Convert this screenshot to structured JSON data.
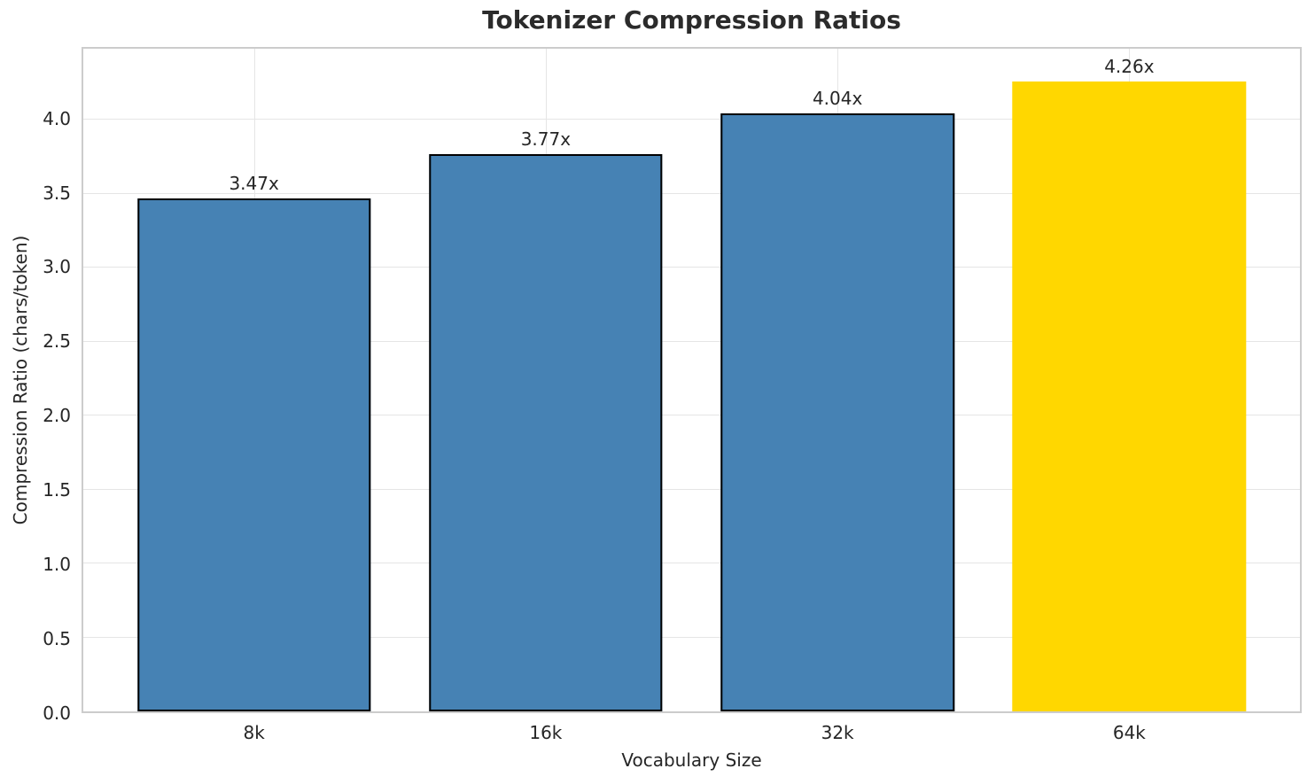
{
  "chart_data": {
    "type": "bar",
    "title": "Tokenizer Compression Ratios",
    "xlabel": "Vocabulary Size",
    "ylabel": "Compression Ratio (chars/token)",
    "categories": [
      "8k",
      "16k",
      "32k",
      "64k"
    ],
    "values": [
      3.47,
      3.77,
      4.04,
      4.26
    ],
    "bar_labels": [
      "3.47x",
      "3.77x",
      "4.04x",
      "4.26x"
    ],
    "bar_colors": [
      "#4682B4",
      "#4682B4",
      "#4682B4",
      "#FFD700"
    ],
    "bar_edge_colors": [
      "#000000",
      "#000000",
      "#000000",
      null
    ],
    "yticks": [
      "0.0",
      "0.5",
      "1.0",
      "1.5",
      "2.0",
      "2.5",
      "3.0",
      "3.5",
      "4.0"
    ],
    "ylim": [
      0,
      4.48
    ],
    "grid": true,
    "legend": false,
    "colors": {
      "default_bar": "#4682B4",
      "highlight_bar": "#FFD700",
      "bar_edge": "#000000",
      "gridline": "#e5e5e5",
      "spine": "#cccccc",
      "text": "#262626"
    }
  }
}
